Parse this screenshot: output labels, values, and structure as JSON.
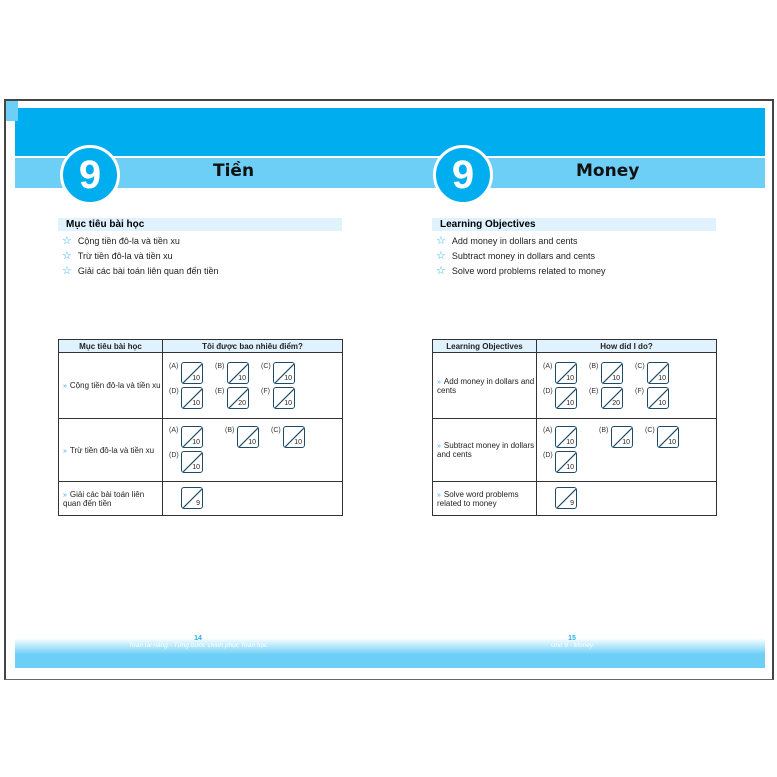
{
  "left": {
    "unit": "9",
    "title": "Tiền",
    "objectives_heading": "Mục tiêu bài học",
    "objectives": [
      "Cộng tiền đô-la và tiền xu",
      "Trừ tiền đô-la và tiền xu",
      "Giải các bài toán liên quan đến tiền"
    ],
    "table": {
      "headers": [
        "Mục tiêu bài học",
        "Tôi được bao nhiêu điểm?"
      ],
      "rows": [
        {
          "label": "Cộng tiền đô-la và tiền xu",
          "boxes": [
            [
              "(A)",
              "10"
            ],
            [
              "(B)",
              "10"
            ],
            [
              "(C)",
              "10"
            ],
            [
              "(D)",
              "10"
            ],
            [
              "(E)",
              "20"
            ],
            [
              "(F)",
              "10"
            ]
          ]
        },
        {
          "label": "Trừ tiền đô-la và tiền xu",
          "boxes": [
            [
              "(A)",
              "10"
            ],
            [
              "(B)",
              "10"
            ],
            [
              "(C)",
              "10"
            ],
            [
              "(D)",
              "10"
            ]
          ]
        },
        {
          "label": "Giải các bài toán liên quan đến tiền",
          "boxes": [
            [
              "",
              "9"
            ]
          ]
        }
      ]
    },
    "page_number": "14",
    "footer": "Toán tài năng - Từng bước chinh phục Toán học"
  },
  "right": {
    "unit": "9",
    "title": "Money",
    "objectives_heading": "Learning Objectives",
    "objectives": [
      "Add money in dollars and cents",
      "Subtract money in dollars and cents",
      "Solve word problems related to money"
    ],
    "table": {
      "headers": [
        "Learning Objectives",
        "How did I do?"
      ],
      "rows": [
        {
          "label": "Add money in dollars and cents",
          "boxes": [
            [
              "(A)",
              "10"
            ],
            [
              "(B)",
              "10"
            ],
            [
              "(C)",
              "10"
            ],
            [
              "(D)",
              "10"
            ],
            [
              "(E)",
              "20"
            ],
            [
              "(F)",
              "10"
            ]
          ]
        },
        {
          "label": "Subtract money in dollars and cents",
          "boxes": [
            [
              "(A)",
              "10"
            ],
            [
              "(B)",
              "10"
            ],
            [
              "(C)",
              "10"
            ],
            [
              "(D)",
              "10"
            ]
          ]
        },
        {
          "label": "Solve word problems related to money",
          "boxes": [
            [
              "",
              "9"
            ]
          ]
        }
      ]
    },
    "page_number": "15",
    "footer": "Unit 9 - Money"
  },
  "colors": {
    "blue": "#00aeef",
    "light_blue": "#6dcff6",
    "header_bg": "#dff2fd"
  }
}
